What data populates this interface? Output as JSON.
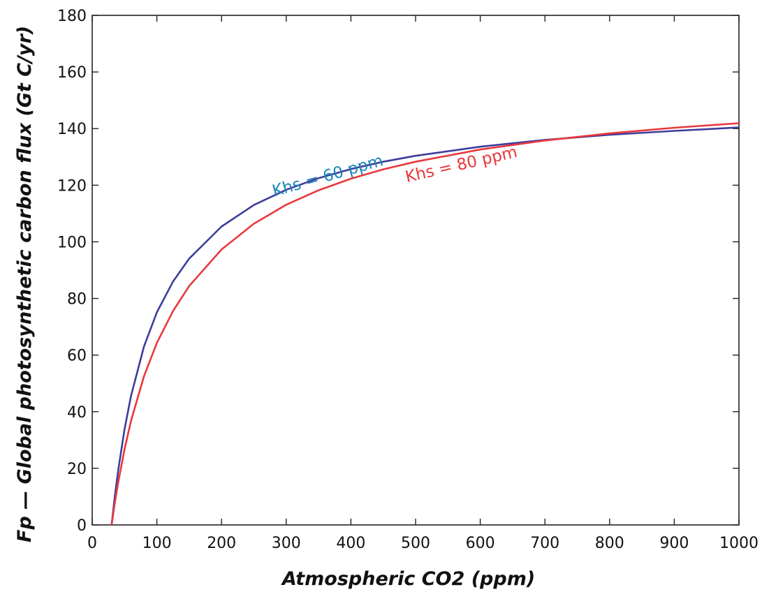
{
  "chart_data": {
    "type": "line",
    "xlabel": "Atmospheric CO2 (ppm)",
    "ylabel": "Fp — Global photosynthetic carbon flux (Gt C/yr)",
    "xlim": [
      0,
      1000
    ],
    "ylim": [
      0,
      180
    ],
    "xticks": [
      0,
      100,
      200,
      300,
      400,
      500,
      600,
      700,
      800,
      900,
      1000
    ],
    "yticks": [
      0,
      20,
      40,
      60,
      80,
      100,
      120,
      140,
      160,
      180
    ],
    "grid": false,
    "legend": "none",
    "x": [
      30,
      35,
      40,
      50,
      60,
      80,
      100,
      125,
      150,
      200,
      250,
      300,
      350,
      400,
      450,
      500,
      600,
      700,
      800,
      900,
      1000
    ],
    "series": [
      {
        "name": "Khs = 60 ppm",
        "color": "#3d3d9c",
        "label_color": "#1a86b8",
        "values": [
          0,
          10.1,
          18.9,
          33.8,
          45.6,
          63.0,
          75.1,
          86.0,
          94.1,
          105.4,
          113.0,
          118.4,
          122.5,
          125.7,
          128.3,
          130.4,
          133.6,
          136.0,
          137.8,
          139.2,
          140.4
        ]
      },
      {
        "name": "Khs = 80 ppm",
        "color": "#e8383d",
        "label_color": "#e8383d",
        "values": [
          0,
          7.8,
          14.7,
          26.7,
          36.8,
          52.5,
          64.3,
          75.6,
          84.4,
          97.3,
          106.4,
          113.1,
          118.2,
          122.3,
          125.6,
          128.3,
          132.6,
          135.8,
          138.3,
          140.3,
          141.9
        ]
      }
    ]
  }
}
